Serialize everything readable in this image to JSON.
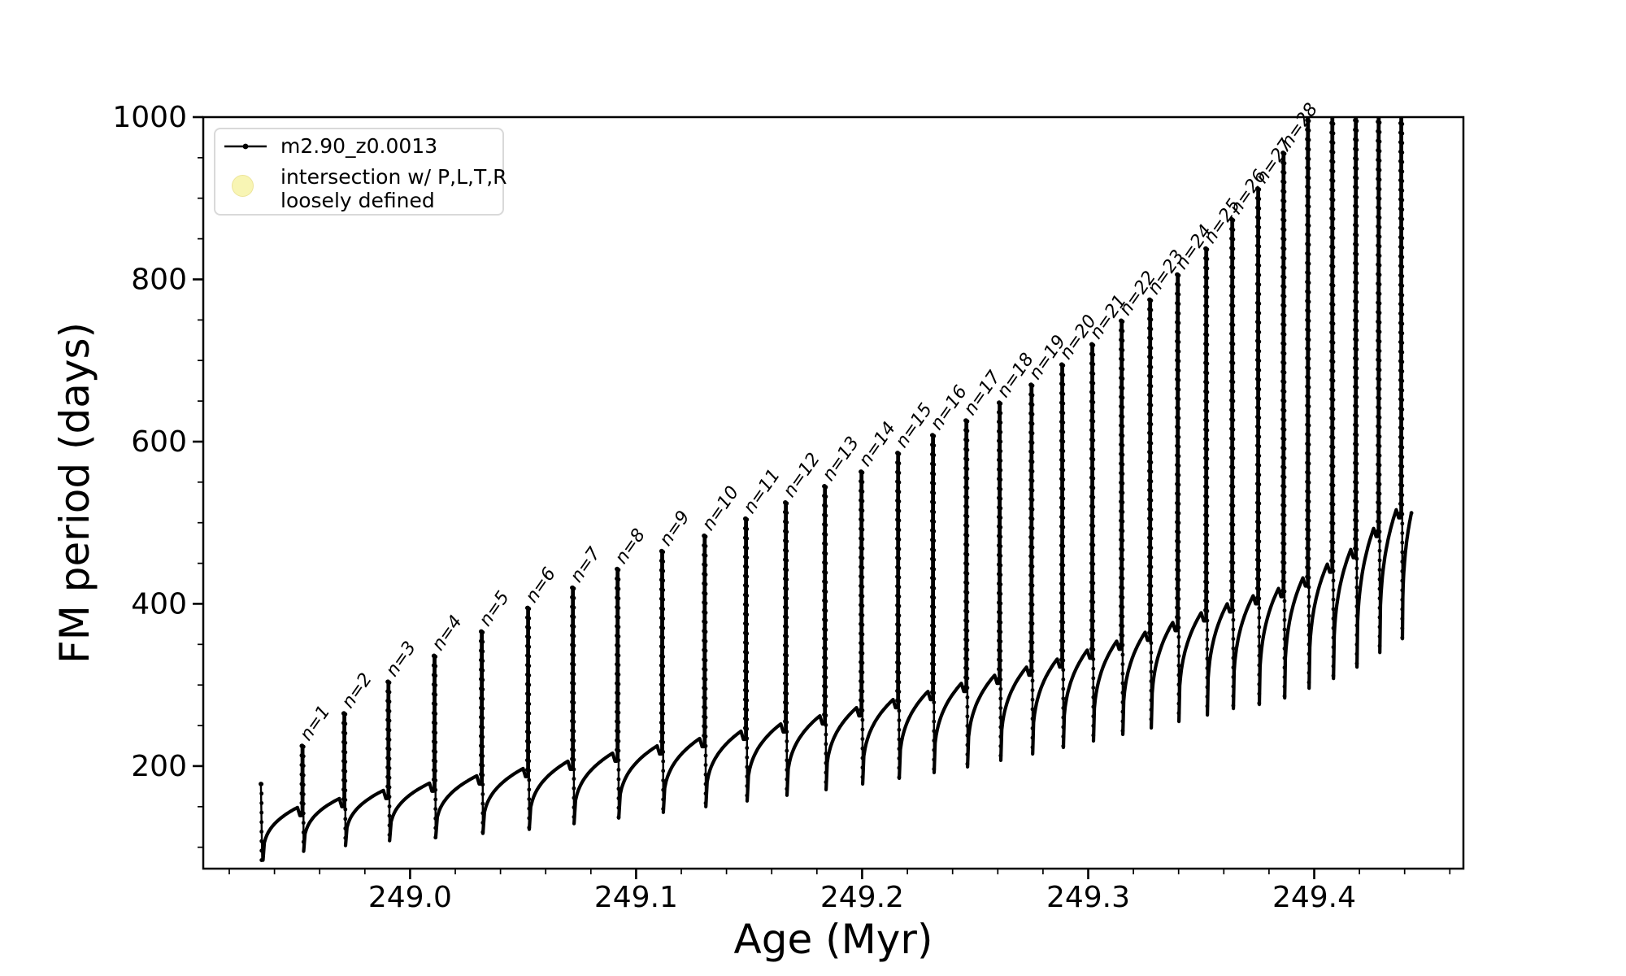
{
  "chart_data": {
    "type": "line",
    "title": "",
    "xlabel": "Age (Myr)",
    "ylabel": "FM period (days)",
    "xlim": [
      248.9085,
      249.466
    ],
    "ylim": [
      73.6,
      1000
    ],
    "x_major_ticks": [
      249.0,
      249.1,
      249.2,
      249.3,
      249.4
    ],
    "x_tick_labels": [
      "249.0",
      "249.1",
      "249.2",
      "249.3",
      "249.4"
    ],
    "x_minor_step": 0.02,
    "y_major_ticks": [
      200,
      400,
      600,
      800,
      1000
    ],
    "y_tick_labels": [
      "200",
      "400",
      "600",
      "800",
      "1000"
    ],
    "y_minor_step": 50,
    "grid": false,
    "legend_position": "upper-left",
    "line_color": "#000000",
    "annotation_rotation_deg": -55,
    "series": [
      {
        "name": "m2.90_z0.0013",
        "color": "#000000",
        "style": "line-with-point-markers",
        "start_point": {
          "age": 248.934,
          "period": 178
        },
        "end_point": {
          "age": 249.443,
          "period": 512
        },
        "pulses": [
          {
            "label": null,
            "age": 248.934,
            "peak": 178,
            "shoulder_before": null,
            "dip_after": 84
          },
          {
            "label": "n=1",
            "age": 248.952,
            "peak": 225,
            "shoulder_before": 149,
            "dip_after": 95
          },
          {
            "label": "n=2",
            "age": 248.9705,
            "peak": 265,
            "shoulder_before": 160,
            "dip_after": 102
          },
          {
            "label": "n=3",
            "age": 248.99,
            "peak": 304,
            "shoulder_before": 170,
            "dip_after": 108
          },
          {
            "label": "n=4",
            "age": 249.0104,
            "peak": 336,
            "shoulder_before": 179,
            "dip_after": 112
          },
          {
            "label": "n=5",
            "age": 249.0313,
            "peak": 366,
            "shoulder_before": 188,
            "dip_after": 117
          },
          {
            "label": "n=6",
            "age": 249.0518,
            "peak": 395,
            "shoulder_before": 197,
            "dip_after": 122
          },
          {
            "label": "n=7",
            "age": 249.0716,
            "peak": 420,
            "shoulder_before": 206,
            "dip_after": 129
          },
          {
            "label": "n=8",
            "age": 249.0914,
            "peak": 443,
            "shoulder_before": 216,
            "dip_after": 136
          },
          {
            "label": "n=9",
            "age": 249.1111,
            "peak": 465,
            "shoulder_before": 225,
            "dip_after": 143
          },
          {
            "label": "n=10",
            "age": 249.1299,
            "peak": 484,
            "shoulder_before": 234,
            "dip_after": 150
          },
          {
            "label": "n=11",
            "age": 249.1482,
            "peak": 505,
            "shoulder_before": 243,
            "dip_after": 157
          },
          {
            "label": "n=12",
            "age": 249.1658,
            "peak": 525,
            "shoulder_before": 252,
            "dip_after": 164
          },
          {
            "label": "n=13",
            "age": 249.1831,
            "peak": 545,
            "shoulder_before": 262,
            "dip_after": 171
          },
          {
            "label": "n=14",
            "age": 249.1993,
            "peak": 563,
            "shoulder_before": 272,
            "dip_after": 178
          },
          {
            "label": "n=15",
            "age": 249.2155,
            "peak": 586,
            "shoulder_before": 282,
            "dip_after": 185
          },
          {
            "label": "n=16",
            "age": 249.2309,
            "peak": 608,
            "shoulder_before": 292,
            "dip_after": 192
          },
          {
            "label": "n=17",
            "age": 249.2457,
            "peak": 626,
            "shoulder_before": 302,
            "dip_after": 199
          },
          {
            "label": "n=18",
            "age": 249.2604,
            "peak": 648,
            "shoulder_before": 312,
            "dip_after": 207
          },
          {
            "label": "n=19",
            "age": 249.2745,
            "peak": 670,
            "shoulder_before": 322,
            "dip_after": 215
          },
          {
            "label": "n=20",
            "age": 249.2881,
            "peak": 695,
            "shoulder_before": 332,
            "dip_after": 223
          },
          {
            "label": "n=21",
            "age": 249.3014,
            "peak": 720,
            "shoulder_before": 343,
            "dip_after": 231
          },
          {
            "label": "n=22",
            "age": 249.3144,
            "peak": 749,
            "shoulder_before": 354,
            "dip_after": 239
          },
          {
            "label": "n=23",
            "age": 249.327,
            "peak": 775,
            "shoulder_before": 365,
            "dip_after": 247
          },
          {
            "label": "n=24",
            "age": 249.3392,
            "peak": 806,
            "shoulder_before": 377,
            "dip_after": 255
          },
          {
            "label": "n=25",
            "age": 249.3518,
            "peak": 838,
            "shoulder_before": 389,
            "dip_after": 263
          },
          {
            "label": "n=26",
            "age": 249.3633,
            "peak": 874,
            "shoulder_before": 400,
            "dip_after": 271
          },
          {
            "label": "n=27",
            "age": 249.3748,
            "peak": 912,
            "shoulder_before": 410,
            "dip_after": 276
          },
          {
            "label": "n=28",
            "age": 249.386,
            "peak": 956,
            "shoulder_before": 419,
            "dip_after": 284
          },
          {
            "label": null,
            "age": 249.3968,
            "peak": 1055,
            "shoulder_before": 432,
            "dip_after": 296
          },
          {
            "label": null,
            "age": 249.4076,
            "peak": 1075,
            "shoulder_before": 449,
            "dip_after": 308
          },
          {
            "label": null,
            "age": 249.418,
            "peak": 1090,
            "shoulder_before": 467,
            "dip_after": 322
          },
          {
            "label": null,
            "age": 249.4281,
            "peak": 1100,
            "shoulder_before": 493,
            "dip_after": 340
          },
          {
            "label": null,
            "age": 249.4381,
            "peak": 1110,
            "shoulder_before": 516,
            "dip_after": 357
          }
        ]
      },
      {
        "name": "intersection w/ P,L,T,R loosely defined",
        "color": "#f8f5b4",
        "style": "scatter-circle",
        "points": []
      }
    ]
  },
  "legend": {
    "entries": [
      {
        "label": "m2.90_z0.0013",
        "marker": "line-dot",
        "color": "#000000"
      },
      {
        "label_lines": [
          "intersection w/ P,L,T,R",
          "loosely defined"
        ],
        "marker": "circle",
        "color": "#f8f5b4"
      }
    ]
  }
}
